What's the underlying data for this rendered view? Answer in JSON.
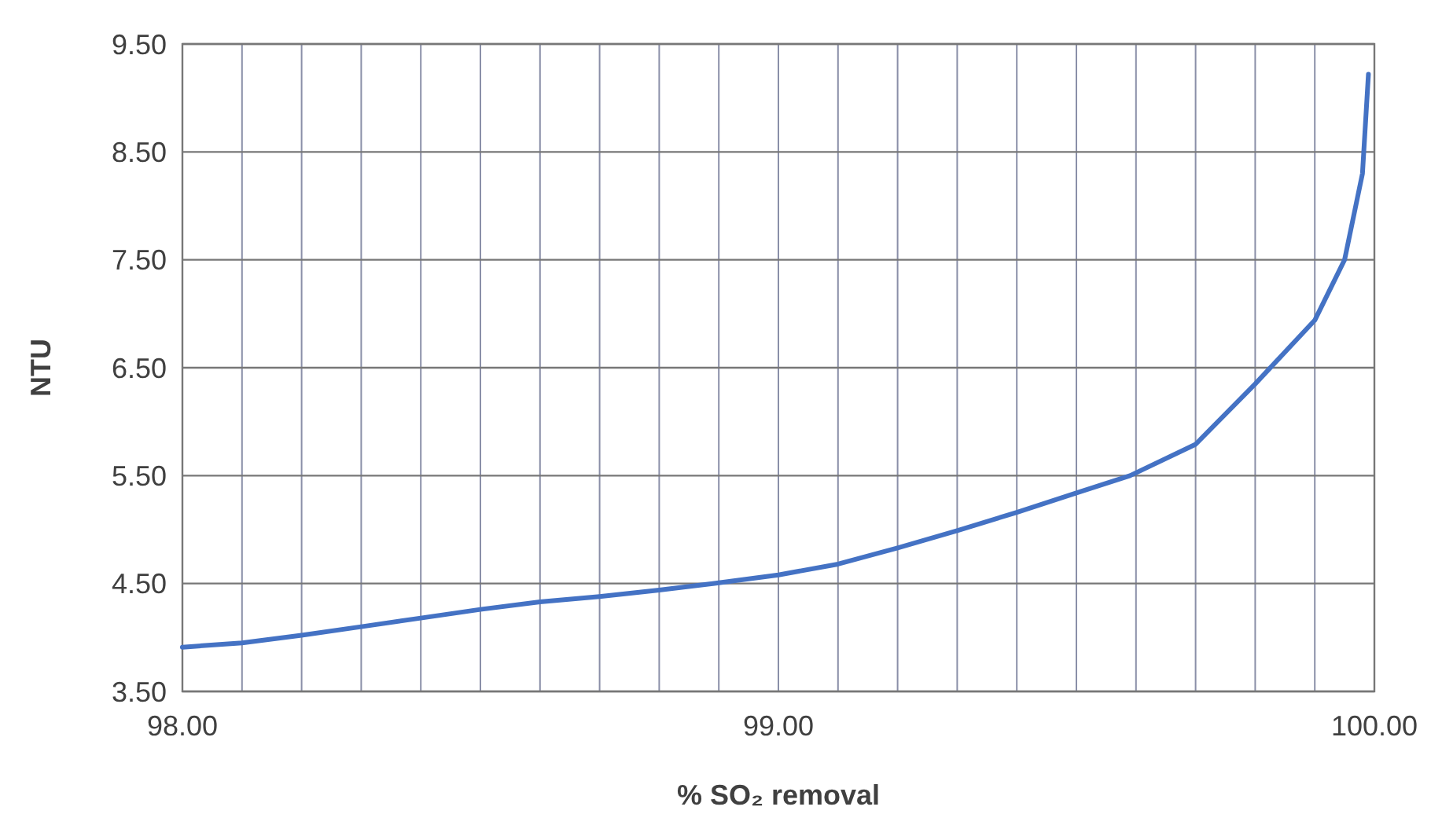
{
  "chart_data": {
    "type": "line",
    "xlabel": "% SO₂ removal",
    "ylabel": "NTU",
    "series": [
      {
        "color": "#4472c4",
        "x": [
          98.0,
          98.1,
          98.2,
          98.3,
          98.4,
          98.5,
          98.6,
          98.7,
          98.8,
          98.89,
          99.0,
          99.1,
          99.2,
          99.3,
          99.4,
          99.5,
          99.59,
          99.7,
          99.8,
          99.9,
          99.95,
          99.98,
          99.99
        ],
        "values": [
          3.91,
          3.95,
          4.02,
          4.1,
          4.18,
          4.26,
          4.33,
          4.38,
          4.44,
          4.5,
          4.58,
          4.68,
          4.83,
          4.99,
          5.16,
          5.34,
          5.5,
          5.79,
          6.35,
          6.94,
          7.5,
          8.3,
          9.22
        ]
      }
    ],
    "xlim": [
      98,
      100
    ],
    "xticks": [
      {
        "value": 98,
        "label": "98.00"
      },
      {
        "value": 98.1,
        "label": null
      },
      {
        "value": 98.2,
        "label": null
      },
      {
        "value": 98.3,
        "label": null
      },
      {
        "value": 98.4,
        "label": null
      },
      {
        "value": 98.5,
        "label": null
      },
      {
        "value": 98.6,
        "label": null
      },
      {
        "value": 98.7,
        "label": null
      },
      {
        "value": 98.8,
        "label": null
      },
      {
        "value": 98.9,
        "label": null
      },
      {
        "value": 99,
        "label": "99.00"
      },
      {
        "value": 99.1,
        "label": null
      },
      {
        "value": 99.2,
        "label": null
      },
      {
        "value": 99.3,
        "label": null
      },
      {
        "value": 99.4,
        "label": null
      },
      {
        "value": 99.5,
        "label": null
      },
      {
        "value": 99.6,
        "label": null
      },
      {
        "value": 99.7,
        "label": null
      },
      {
        "value": 99.8,
        "label": null
      },
      {
        "value": 99.9,
        "label": null
      },
      {
        "value": 100,
        "label": "100.00"
      }
    ],
    "ylim": [
      3.5,
      9.5
    ],
    "yticks": [
      {
        "value": 3.5,
        "label": "3.50"
      },
      {
        "value": 4.5,
        "label": "4.50"
      },
      {
        "value": 5.5,
        "label": "5.50"
      },
      {
        "value": 6.5,
        "label": "6.50"
      },
      {
        "value": 7.5,
        "label": "7.50"
      },
      {
        "value": 8.5,
        "label": "8.50"
      },
      {
        "value": 9.5,
        "label": "9.50"
      }
    ],
    "grid": true,
    "marker": "none",
    "line_style": "solid"
  }
}
